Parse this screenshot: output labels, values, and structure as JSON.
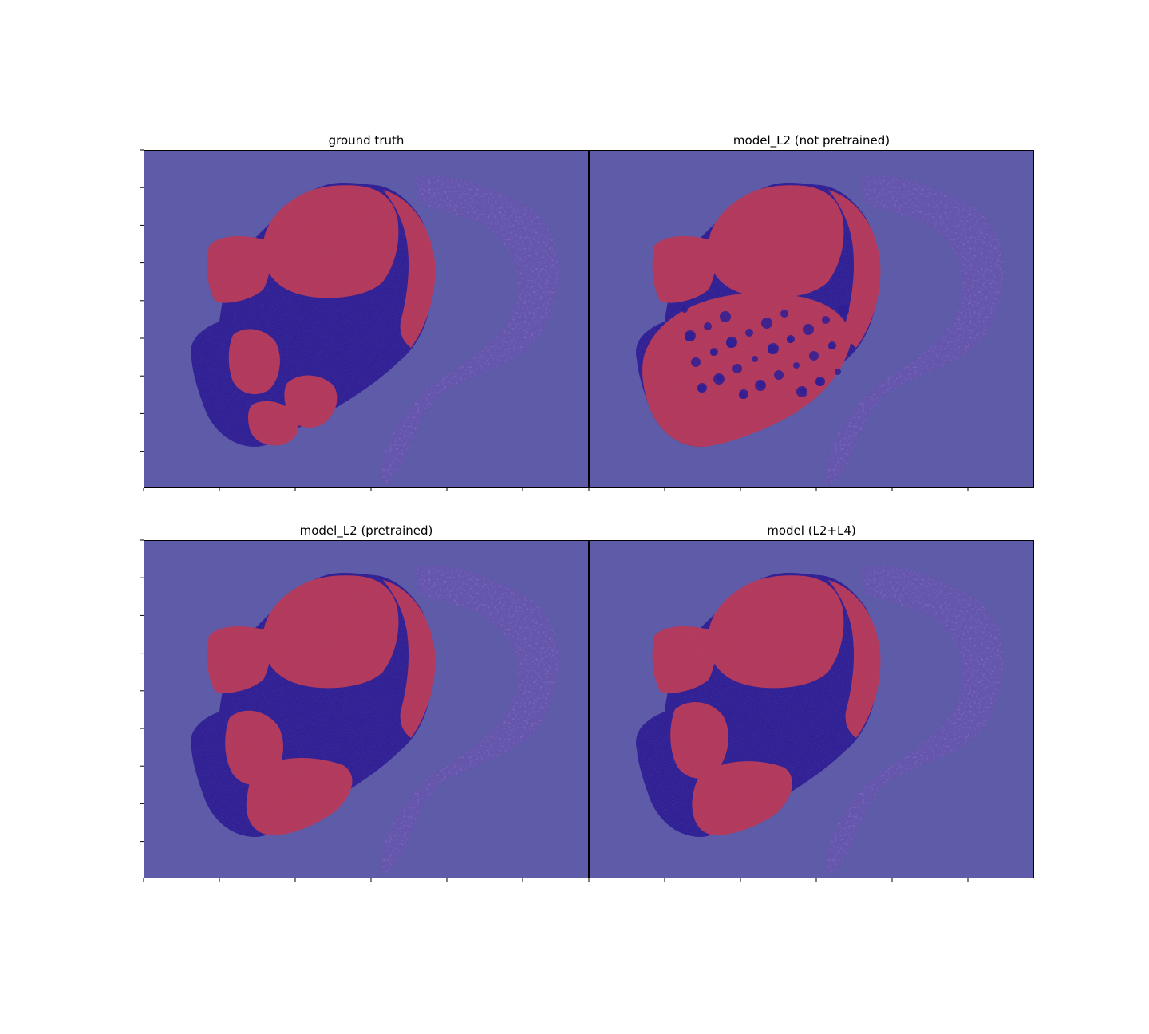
{
  "figure": {
    "panels": [
      {
        "id": "gt",
        "title": "ground truth",
        "variant": "gt"
      },
      {
        "id": "l2np",
        "title": "model_L2 (not pretrained)",
        "variant": "np"
      },
      {
        "id": "l2p",
        "title": "model_L2 (pretrained)",
        "variant": "p"
      },
      {
        "id": "l2l4",
        "title": "model (L2+L4)",
        "variant": "l24"
      }
    ],
    "colors": {
      "background": "#5e5ba8",
      "tissue": "#2e1f94",
      "tumor": "#b23a5c",
      "faint_tissue": "#6a50b0"
    }
  }
}
